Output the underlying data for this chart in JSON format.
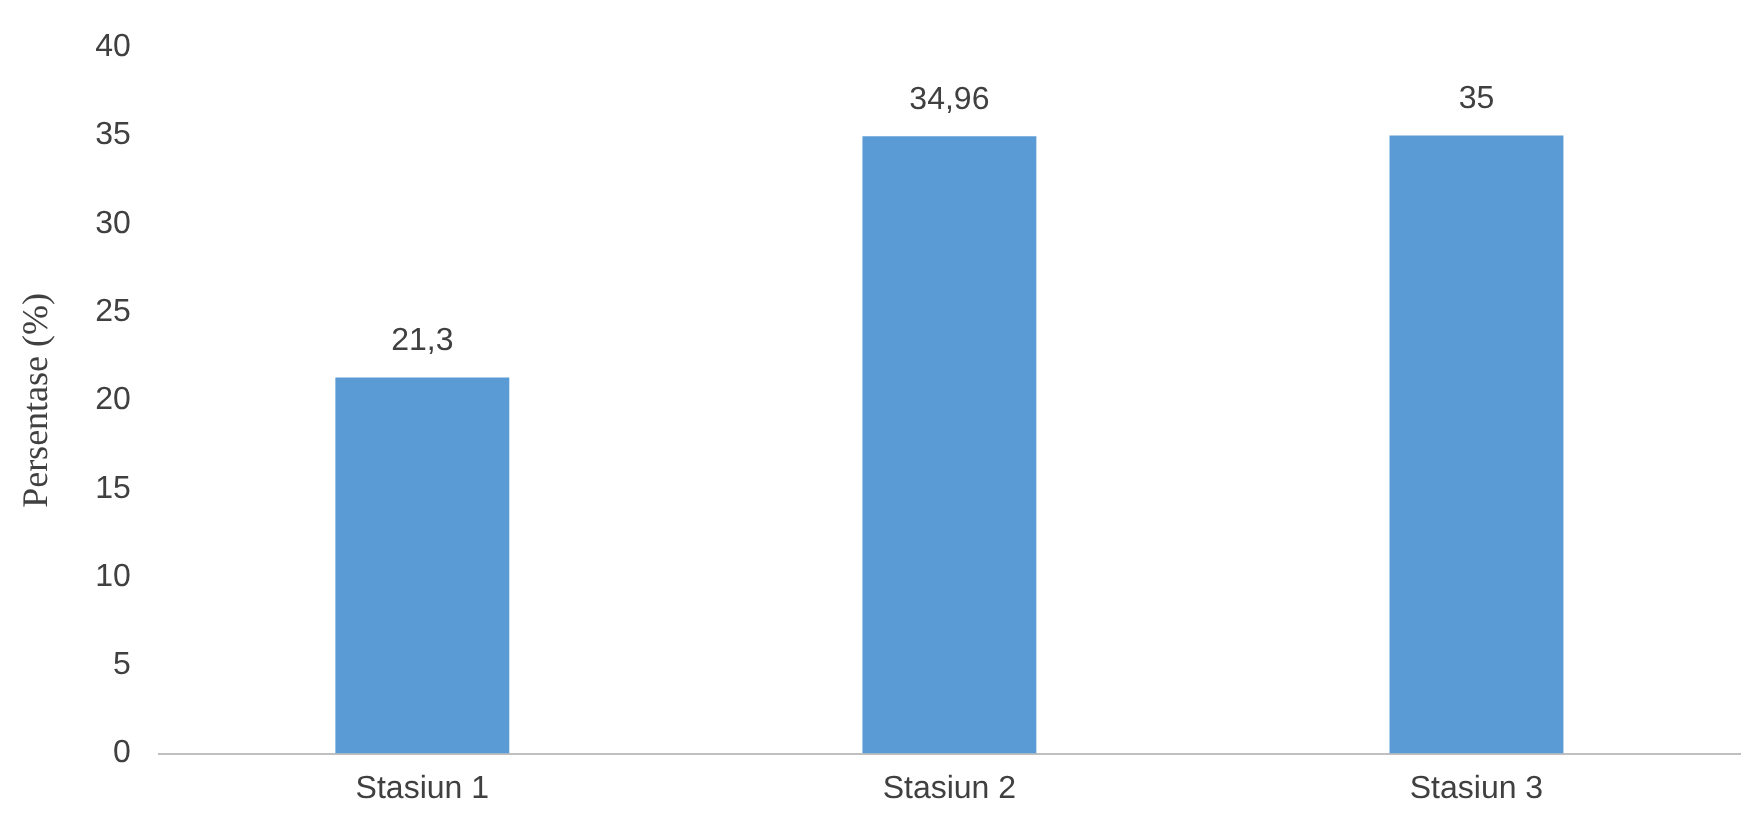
{
  "chart_data": {
    "type": "bar",
    "ylabel": "Persentase (%)",
    "categories": [
      "Stasiun 1",
      "Stasiun 2",
      "Stasiun 3"
    ],
    "values": [
      21.3,
      34.96,
      35
    ],
    "value_labels": [
      "21,3",
      "34,96",
      "35"
    ],
    "color": "#5b9bd5",
    "ylim": [
      0,
      40
    ],
    "yticks": [
      0,
      5,
      10,
      15,
      20,
      25,
      30,
      35,
      40
    ],
    "grid": false,
    "legend": false
  }
}
